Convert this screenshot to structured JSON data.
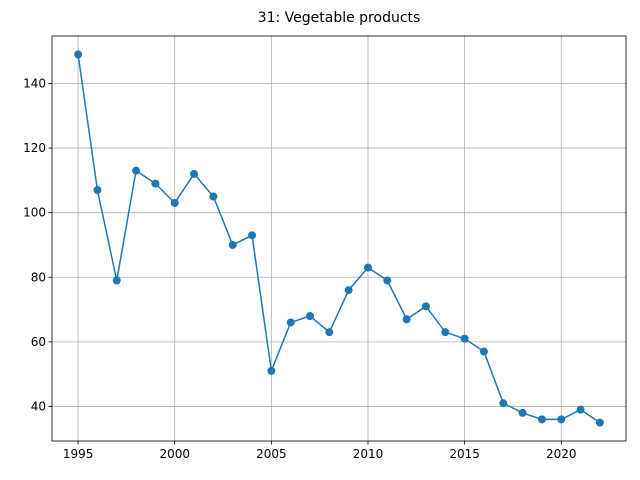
{
  "chart_data": {
    "type": "line",
    "title": "31: Vegetable products",
    "x": [
      1995,
      1996,
      1997,
      1998,
      1999,
      2000,
      2001,
      2002,
      2003,
      2004,
      2005,
      2006,
      2007,
      2008,
      2009,
      2010,
      2011,
      2012,
      2013,
      2014,
      2015,
      2016,
      2017,
      2018,
      2019,
      2020,
      2021,
      2022
    ],
    "series": [
      {
        "name": "Vegetable products",
        "color": "#1f77b4",
        "values": [
          149,
          107,
          79,
          113,
          109,
          103,
          112,
          105,
          90,
          93,
          51,
          66,
          68,
          63,
          76,
          83,
          79,
          67,
          71,
          63,
          61,
          57,
          41,
          38,
          36,
          36,
          39,
          35
        ]
      }
    ],
    "xlim": [
      1993.65,
      2023.35
    ],
    "ylim": [
      29.3,
      154.7
    ],
    "xticks": [
      1995,
      2000,
      2005,
      2010,
      2015,
      2020
    ],
    "yticks": [
      40,
      60,
      80,
      100,
      120,
      140
    ],
    "grid": true
  }
}
